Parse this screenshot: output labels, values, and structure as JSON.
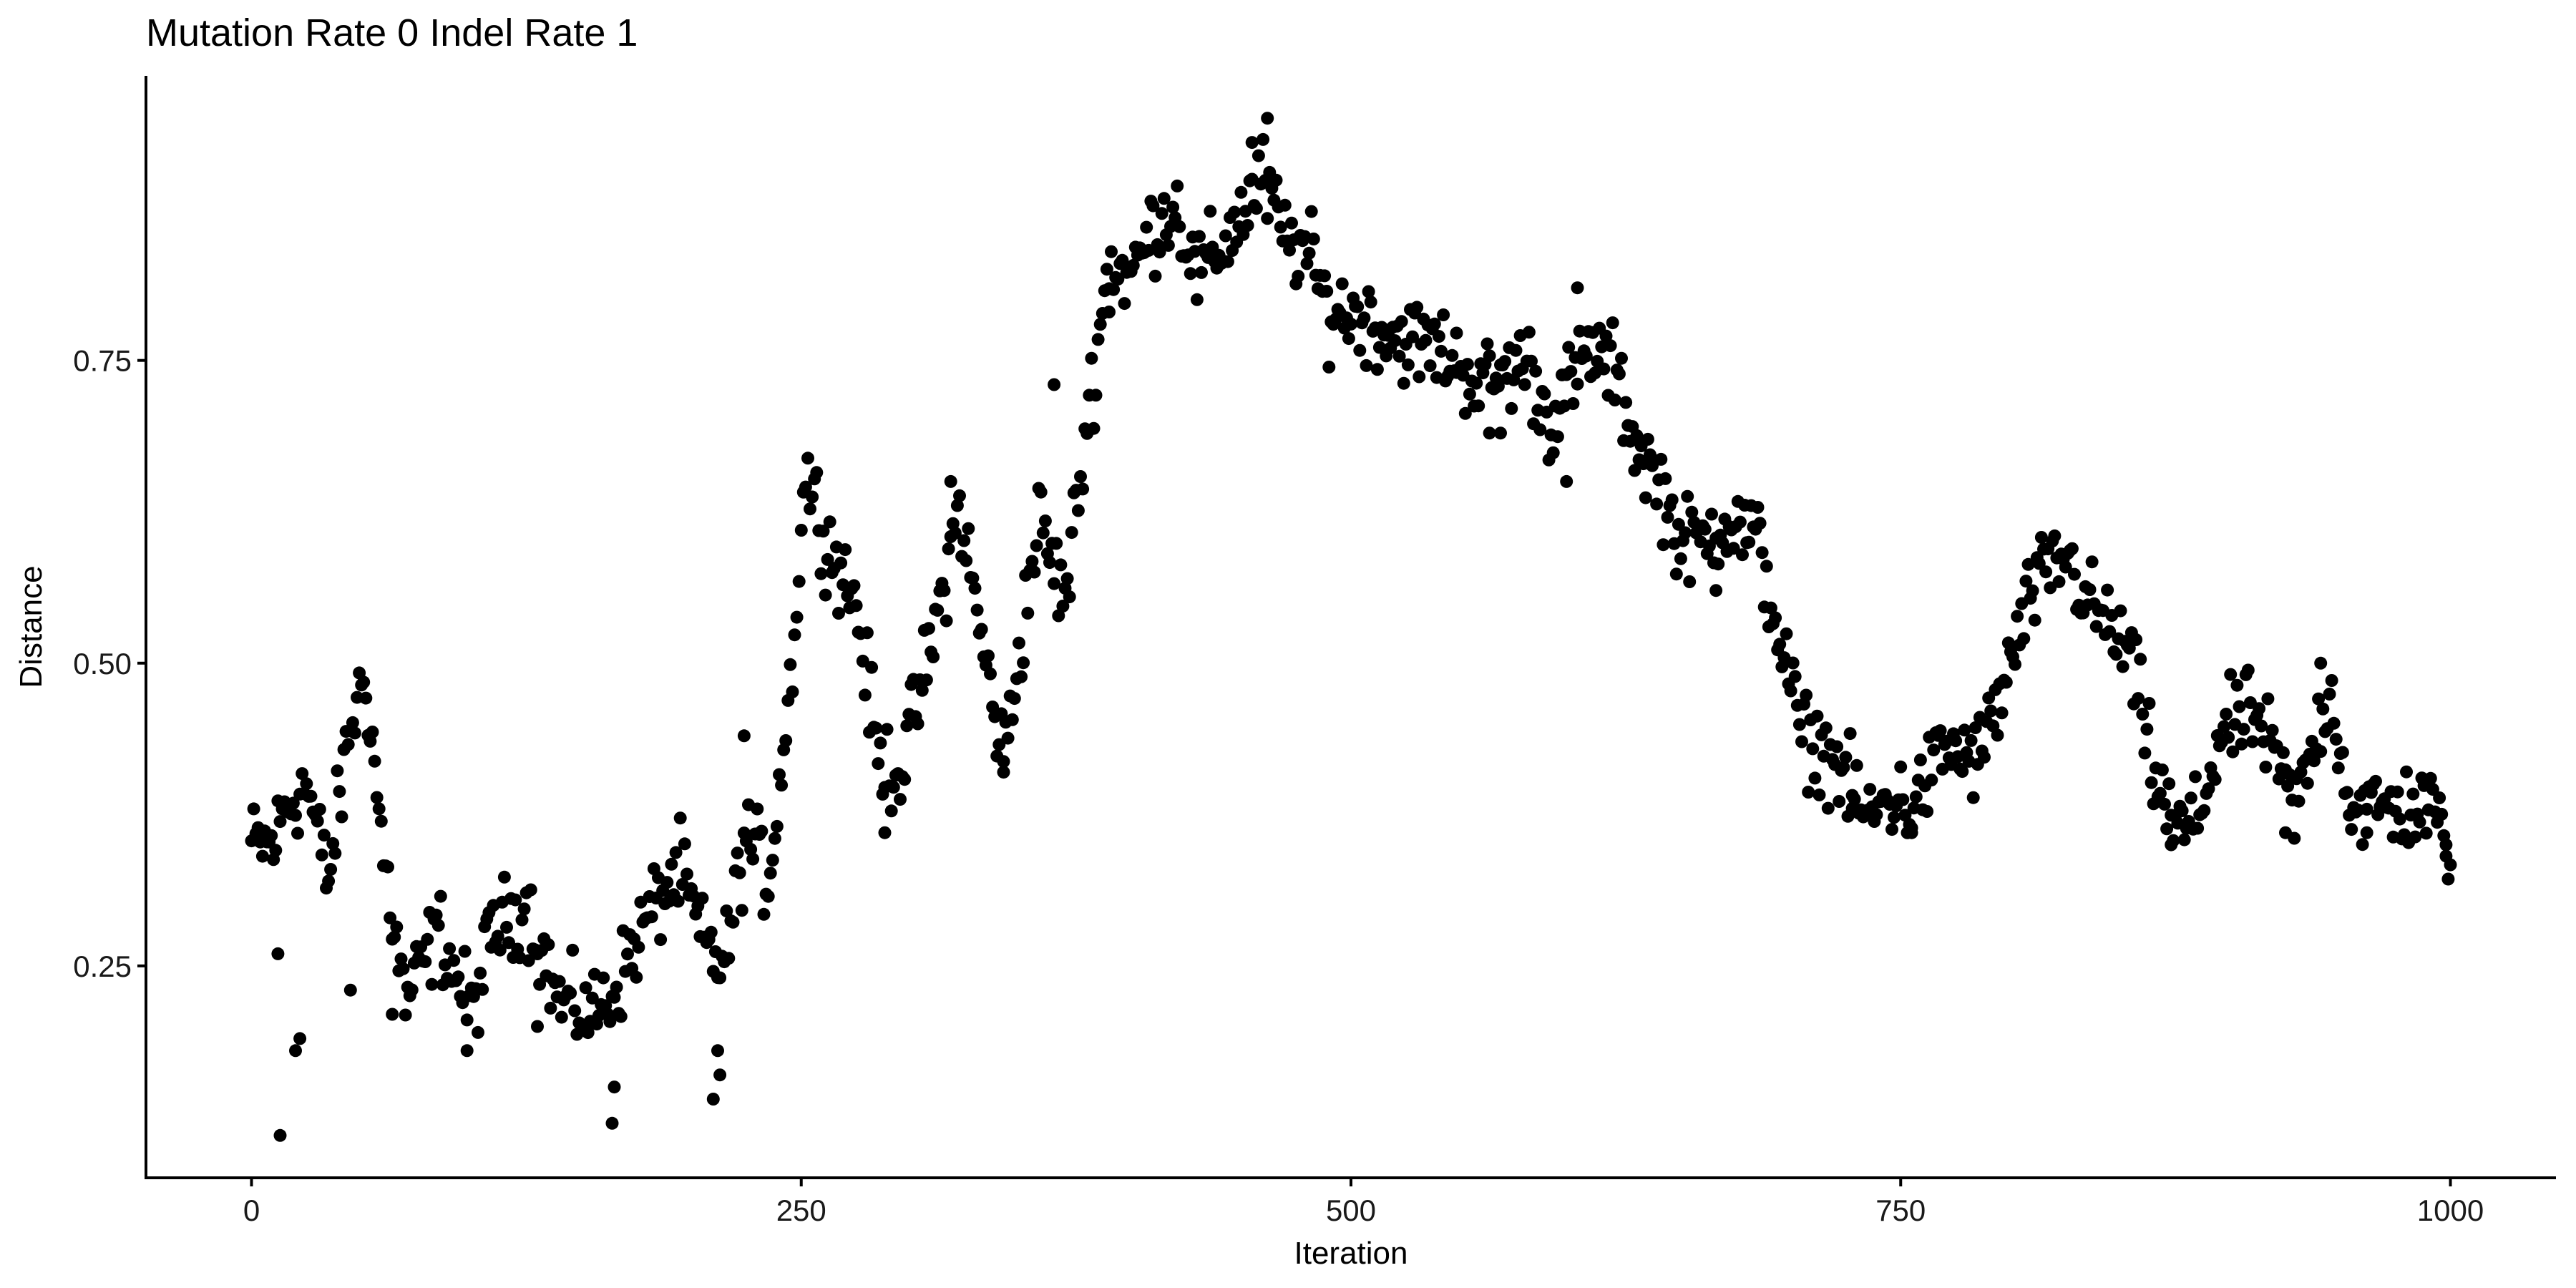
{
  "chart_data": {
    "type": "scatter",
    "title": "Mutation Rate 0 Indel Rate 1",
    "xlabel": "Iteration",
    "ylabel": "Distance",
    "xlim": [
      -48,
      1048
    ],
    "ylim": [
      0.075,
      0.985
    ],
    "xticks": [
      0,
      250,
      500,
      750,
      1000
    ],
    "xtick_labels": [
      "0",
      "250",
      "500",
      "750",
      "1000"
    ],
    "yticks": [
      0.25,
      0.5,
      0.75
    ],
    "ytick_labels": [
      "0.25",
      "0.50",
      "0.75"
    ],
    "grid": false,
    "legend": "none",
    "point_color": "#000000",
    "anchors": [
      [
        0,
        0.35
      ],
      [
        10,
        0.35
      ],
      [
        15,
        0.38
      ],
      [
        25,
        0.4
      ],
      [
        35,
        0.32
      ],
      [
        45,
        0.45
      ],
      [
        52,
        0.49
      ],
      [
        60,
        0.34
      ],
      [
        70,
        0.22
      ],
      [
        85,
        0.28
      ],
      [
        100,
        0.21
      ],
      [
        110,
        0.28
      ],
      [
        125,
        0.3
      ],
      [
        140,
        0.22
      ],
      [
        155,
        0.21
      ],
      [
        165,
        0.23
      ],
      [
        180,
        0.29
      ],
      [
        195,
        0.33
      ],
      [
        205,
        0.27
      ],
      [
        215,
        0.25
      ],
      [
        225,
        0.36
      ],
      [
        235,
        0.32
      ],
      [
        245,
        0.48
      ],
      [
        252,
        0.66
      ],
      [
        262,
        0.6
      ],
      [
        275,
        0.55
      ],
      [
        285,
        0.42
      ],
      [
        295,
        0.41
      ],
      [
        310,
        0.52
      ],
      [
        322,
        0.63
      ],
      [
        330,
        0.54
      ],
      [
        342,
        0.42
      ],
      [
        350,
        0.52
      ],
      [
        358,
        0.62
      ],
      [
        370,
        0.55
      ],
      [
        380,
        0.7
      ],
      [
        390,
        0.83
      ],
      [
        400,
        0.82
      ],
      [
        410,
        0.86
      ],
      [
        420,
        0.88
      ],
      [
        430,
        0.82
      ],
      [
        440,
        0.84
      ],
      [
        450,
        0.87
      ],
      [
        460,
        0.9
      ],
      [
        470,
        0.85
      ],
      [
        480,
        0.84
      ],
      [
        490,
        0.79
      ],
      [
        500,
        0.79
      ],
      [
        520,
        0.77
      ],
      [
        540,
        0.76
      ],
      [
        560,
        0.73
      ],
      [
        580,
        0.75
      ],
      [
        590,
        0.7
      ],
      [
        600,
        0.73
      ],
      [
        610,
        0.76
      ],
      [
        620,
        0.74
      ],
      [
        630,
        0.68
      ],
      [
        640,
        0.65
      ],
      [
        650,
        0.6
      ],
      [
        660,
        0.6
      ],
      [
        670,
        0.62
      ],
      [
        685,
        0.6
      ],
      [
        695,
        0.52
      ],
      [
        705,
        0.44
      ],
      [
        720,
        0.42
      ],
      [
        735,
        0.37
      ],
      [
        745,
        0.39
      ],
      [
        755,
        0.38
      ],
      [
        770,
        0.43
      ],
      [
        785,
        0.42
      ],
      [
        795,
        0.47
      ],
      [
        810,
        0.56
      ],
      [
        825,
        0.59
      ],
      [
        835,
        0.55
      ],
      [
        845,
        0.53
      ],
      [
        855,
        0.5
      ],
      [
        865,
        0.41
      ],
      [
        875,
        0.36
      ],
      [
        885,
        0.37
      ],
      [
        895,
        0.44
      ],
      [
        910,
        0.46
      ],
      [
        920,
        0.42
      ],
      [
        930,
        0.38
      ],
      [
        945,
        0.48
      ],
      [
        955,
        0.38
      ],
      [
        970,
        0.38
      ],
      [
        990,
        0.38
      ],
      [
        1000,
        0.35
      ]
    ],
    "outliers": [
      [
        13,
        0.11
      ],
      [
        20,
        0.18
      ],
      [
        22,
        0.19
      ],
      [
        12,
        0.26
      ],
      [
        45,
        0.23
      ],
      [
        64,
        0.21
      ],
      [
        98,
        0.18
      ],
      [
        130,
        0.2
      ],
      [
        164,
        0.12
      ],
      [
        165,
        0.15
      ],
      [
        210,
        0.14
      ],
      [
        213,
        0.16
      ],
      [
        212,
        0.18
      ],
      [
        224,
        0.44
      ],
      [
        288,
        0.36
      ],
      [
        318,
        0.65
      ],
      [
        342,
        0.41
      ],
      [
        365,
        0.73
      ],
      [
        390,
        0.79
      ],
      [
        455,
        0.93
      ],
      [
        462,
        0.95
      ],
      [
        548,
        0.74
      ],
      [
        563,
        0.69
      ],
      [
        568,
        0.69
      ],
      [
        598,
        0.65
      ],
      [
        603,
        0.81
      ],
      [
        666,
        0.56
      ],
      [
        728,
        0.38
      ],
      [
        755,
        0.36
      ],
      [
        873,
        0.35
      ],
      [
        925,
        0.36
      ],
      [
        941,
        0.5
      ],
      [
        962,
        0.36
      ],
      [
        998,
        0.35
      ]
    ]
  }
}
